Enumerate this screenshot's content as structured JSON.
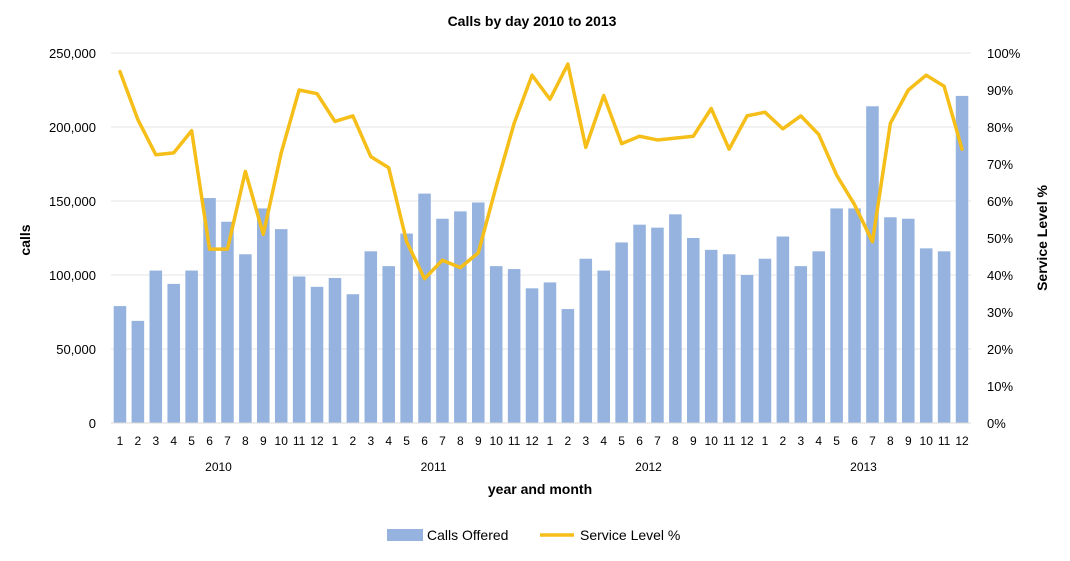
{
  "chart_data": {
    "type": "bar+line",
    "title": "Calls by day 2010 to 2013",
    "xlabel": "year and month",
    "ylabel": "calls",
    "y2label": "Service Level %",
    "ylim": [
      0,
      250000
    ],
    "y2lim": [
      0,
      100
    ],
    "y_ticks": [
      "0",
      "50,000",
      "100,000",
      "150,000",
      "200,000",
      "250,000"
    ],
    "y2_ticks": [
      "0%",
      "10%",
      "20%",
      "30%",
      "40%",
      "50%",
      "60%",
      "70%",
      "80%",
      "90%",
      "100%"
    ],
    "years": [
      "2010",
      "2011",
      "2012",
      "2013"
    ],
    "months": [
      "1",
      "2",
      "3",
      "4",
      "5",
      "6",
      "7",
      "8",
      "9",
      "10",
      "11",
      "12"
    ],
    "colors": {
      "bars": "#95B3DE",
      "line": "#F5BE18",
      "grid": "#E6E6E6"
    },
    "series": [
      {
        "name": "Calls Offered",
        "type": "bar",
        "axis": "left",
        "values": [
          79000,
          69000,
          103000,
          94000,
          103000,
          152000,
          136000,
          114000,
          145000,
          131000,
          99000,
          92000,
          98000,
          87000,
          116000,
          106000,
          128000,
          155000,
          138000,
          143000,
          149000,
          106000,
          104000,
          91000,
          95000,
          77000,
          111000,
          103000,
          122000,
          134000,
          132000,
          141000,
          125000,
          117000,
          114000,
          100000,
          111000,
          126000,
          106000,
          116000,
          145000,
          145000,
          214000,
          139000,
          138000,
          118000,
          116000,
          221000
        ]
      },
      {
        "name": "Service Level %",
        "type": "line",
        "axis": "right",
        "values": [
          95,
          82,
          72.5,
          73,
          79,
          47,
          47,
          68,
          51,
          73,
          90,
          89,
          81.5,
          83,
          72,
          69,
          49,
          39,
          44,
          42,
          46,
          64,
          81,
          94,
          87.5,
          97,
          74.5,
          88.5,
          75.5,
          77.5,
          76.5,
          77,
          77.5,
          85,
          74,
          83,
          84,
          79.5,
          83,
          78,
          67,
          59,
          49,
          81,
          90,
          94,
          91,
          74
        ]
      }
    ],
    "legend": [
      "Calls Offered",
      "Service Level %"
    ]
  }
}
